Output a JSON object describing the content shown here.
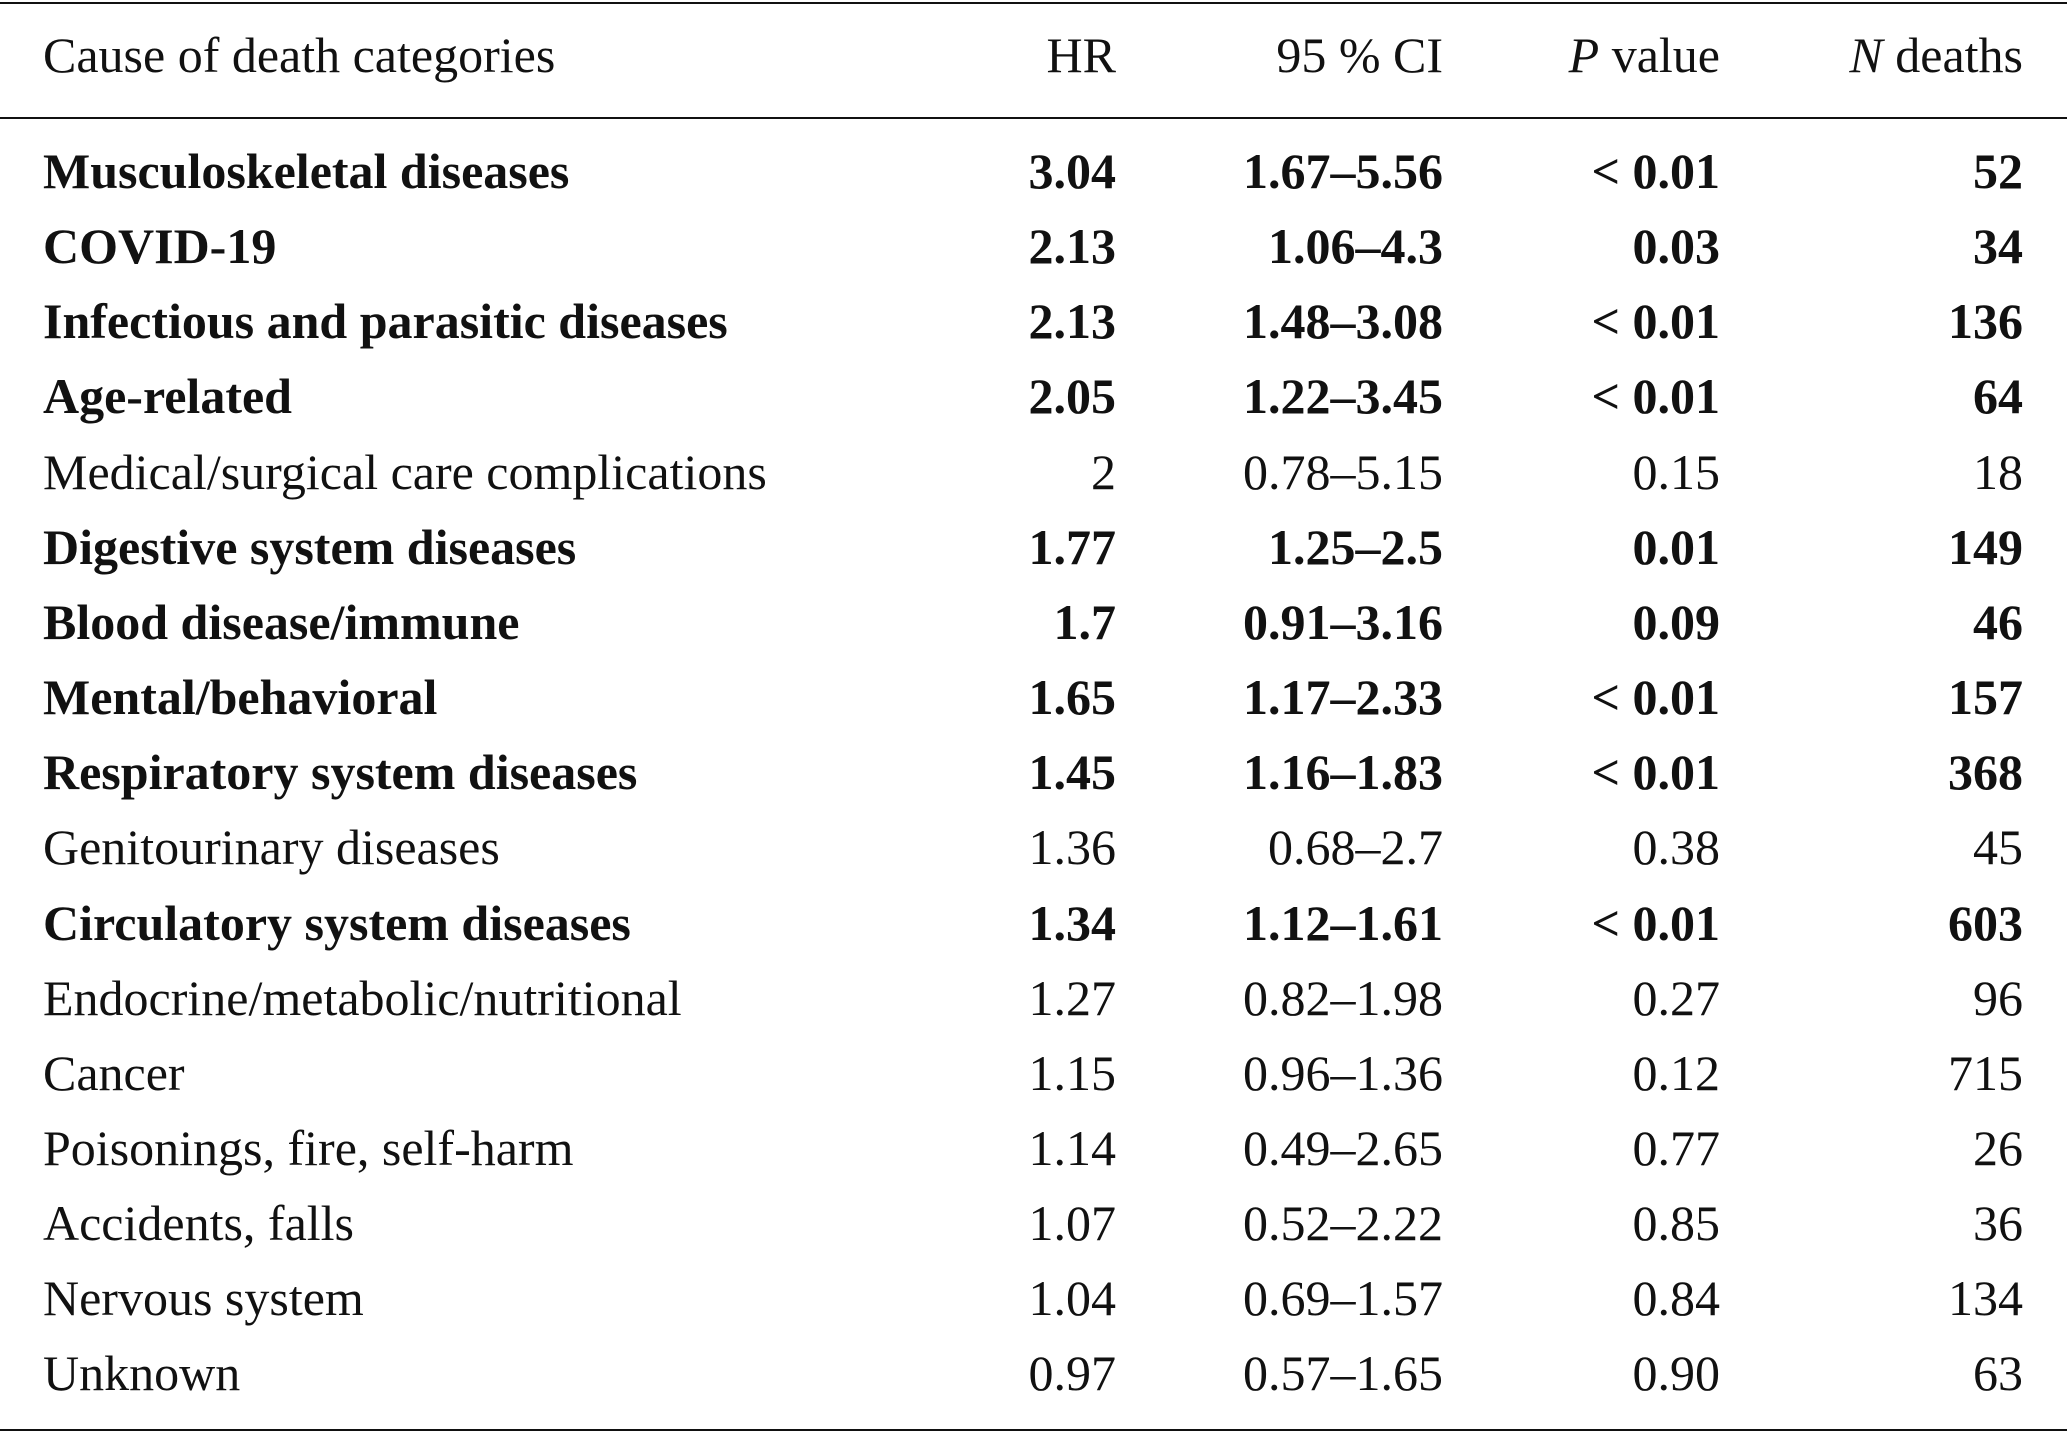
{
  "header": {
    "cause": "Cause of death categories",
    "hr": "HR",
    "ci": "95 % CI",
    "p_italic": "P",
    "p_rest": " value",
    "n_italic": "N",
    "n_rest": " deaths"
  },
  "rows": [
    {
      "cause": "Musculoskeletal diseases",
      "hr": "3.04",
      "ci": "1.67–5.56",
      "p": "< 0.01",
      "n": "52",
      "bold": true
    },
    {
      "cause": "COVID-19",
      "hr": "2.13",
      "ci": "1.06–4.3",
      "p": "0.03",
      "n": "34",
      "bold": true
    },
    {
      "cause": "Infectious and parasitic diseases",
      "hr": "2.13",
      "ci": "1.48–3.08",
      "p": "< 0.01",
      "n": "136",
      "bold": true
    },
    {
      "cause": "Age-related",
      "hr": "2.05",
      "ci": "1.22–3.45",
      "p": "< 0.01",
      "n": "64",
      "bold": true
    },
    {
      "cause": "Medical/surgical care complications",
      "hr": "2",
      "ci": "0.78–5.15",
      "p": "0.15",
      "n": "18",
      "bold": false
    },
    {
      "cause": "Digestive system diseases",
      "hr": "1.77",
      "ci": "1.25–2.5",
      "p": "0.01",
      "n": "149",
      "bold": true
    },
    {
      "cause": "Blood disease/immune",
      "hr": "1.7",
      "ci": "0.91–3.16",
      "p": "0.09",
      "n": "46",
      "bold": true
    },
    {
      "cause": "Mental/behavioral",
      "hr": "1.65",
      "ci": "1.17–2.33",
      "p": "< 0.01",
      "n": "157",
      "bold": true
    },
    {
      "cause": "Respiratory system diseases",
      "hr": "1.45",
      "ci": "1.16–1.83",
      "p": "< 0.01",
      "n": "368",
      "bold": true
    },
    {
      "cause": "Genitourinary diseases",
      "hr": "1.36",
      "ci": "0.68–2.7",
      "p": "0.38",
      "n": "45",
      "bold": false
    },
    {
      "cause": "Circulatory system diseases",
      "hr": "1.34",
      "ci": "1.12–1.61",
      "p": "< 0.01",
      "n": "603",
      "bold": true
    },
    {
      "cause": "Endocrine/metabolic/nutritional",
      "hr": "1.27",
      "ci": "0.82–1.98",
      "p": "0.27",
      "n": "96",
      "bold": false
    },
    {
      "cause": "Cancer",
      "hr": "1.15",
      "ci": "0.96–1.36",
      "p": "0.12",
      "n": "715",
      "bold": false
    },
    {
      "cause": "Poisonings, fire, self-harm",
      "hr": "1.14",
      "ci": "0.49–2.65",
      "p": "0.77",
      "n": "26",
      "bold": false
    },
    {
      "cause": "Accidents, falls",
      "hr": "1.07",
      "ci": "0.52–2.22",
      "p": "0.85",
      "n": "36",
      "bold": false
    },
    {
      "cause": "Nervous system",
      "hr": "1.04",
      "ci": "0.69–1.57",
      "p": "0.84",
      "n": "134",
      "bold": false
    },
    {
      "cause": "Unknown",
      "hr": "0.97",
      "ci": "0.57–1.65",
      "p": "0.90",
      "n": "63",
      "bold": false
    }
  ]
}
